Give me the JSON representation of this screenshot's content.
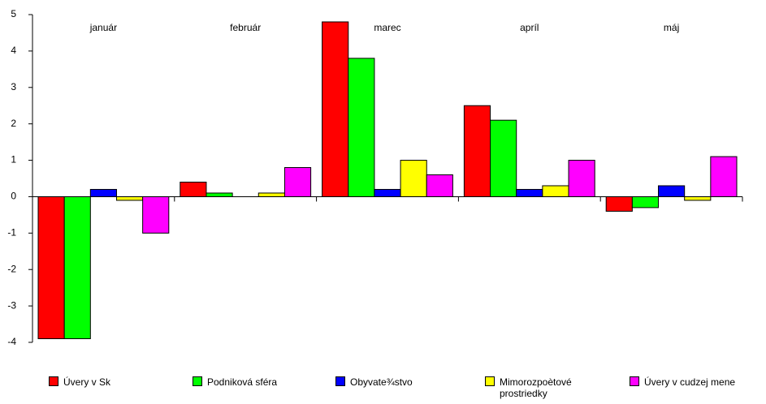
{
  "chart_data": {
    "type": "bar",
    "categories": [
      "január",
      "február",
      "marec",
      "apríl",
      "máj"
    ],
    "series": [
      {
        "name": "Úvery v Sk",
        "color": "#ff0000",
        "values": [
          -3.9,
          0.4,
          4.8,
          2.5,
          -0.4
        ]
      },
      {
        "name": "Podniková sféra",
        "color": "#00ff00",
        "values": [
          -3.9,
          0.1,
          3.8,
          2.1,
          -0.3
        ]
      },
      {
        "name": "Obyvate¾stvo",
        "color": "#0000ff",
        "values": [
          0.2,
          0,
          0.2,
          0.2,
          0.3
        ]
      },
      {
        "name": "Mimorozpoètové prostriedky",
        "color": "#ffff00",
        "values": [
          -0.1,
          0.1,
          1.0,
          0.3,
          -0.1
        ]
      },
      {
        "name": "Úvery v cudzej mene",
        "color": "#ff00ff",
        "values": [
          -1.0,
          0.8,
          0.6,
          1.0,
          1.1
        ]
      }
    ],
    "ylim": [
      -4,
      5
    ],
    "yticks": [
      -4,
      -3,
      -2,
      -1,
      0,
      1,
      2,
      3,
      4,
      5
    ],
    "legend": "bottom"
  }
}
